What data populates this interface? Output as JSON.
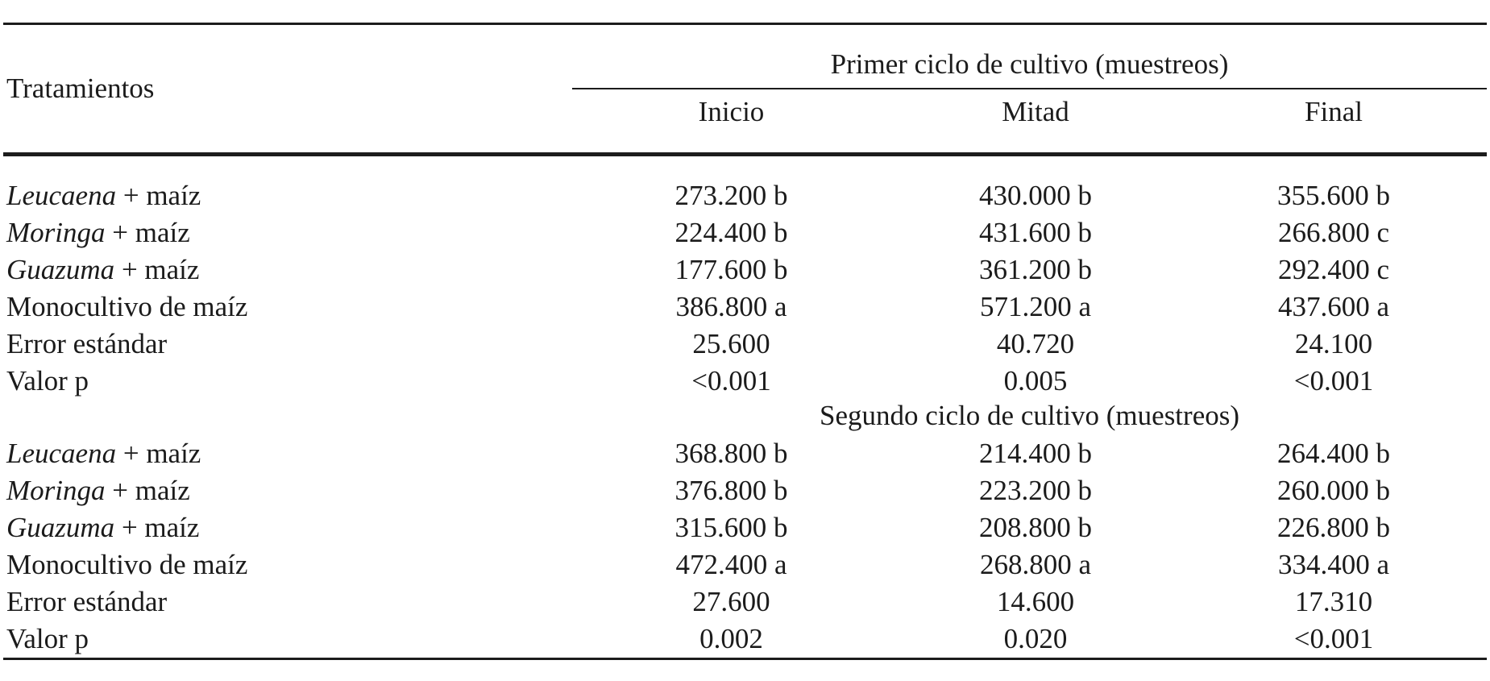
{
  "table": {
    "header": {
      "treatments": "Tratamientos",
      "cols": [
        "Inicio",
        "Mitad",
        "Final"
      ]
    },
    "sections": [
      {
        "title": "Primer ciclo de cultivo (muestreos)",
        "rows": [
          {
            "sp": "Leucaena",
            "rest": " + maíz",
            "v1": "273.200 b",
            "v2": "430.000 b",
            "v3": "355.600 b"
          },
          {
            "sp": "Moringa",
            "rest": " + maíz",
            "v1": "224.400 b",
            "v2": "431.600 b",
            "v3": "266.800 c"
          },
          {
            "sp": "Guazuma",
            "rest": " + maíz",
            "v1": "177.600 b",
            "v2": "361.200 b",
            "v3": "292.400 c"
          },
          {
            "sp": "",
            "rest": "Monocultivo de maíz",
            "v1": "386.800 a",
            "v2": "571.200 a",
            "v3": "437.600 a"
          },
          {
            "sp": "",
            "rest": "Error estándar",
            "v1": "25.600",
            "v2": "40.720",
            "v3": "24.100"
          },
          {
            "sp": "",
            "rest": "Valor p",
            "v1": "<0.001",
            "v2": "0.005",
            "v3": "<0.001"
          }
        ]
      },
      {
        "title": "Segundo ciclo de cultivo (muestreos)",
        "rows": [
          {
            "sp": "Leucaena",
            "rest": " + maíz",
            "v1": "368.800 b",
            "v2": "214.400 b",
            "v3": "264.400 b"
          },
          {
            "sp": "Moringa",
            "rest": " + maíz",
            "v1": "376.800 b",
            "v2": "223.200 b",
            "v3": "260.000 b"
          },
          {
            "sp": "Guazuma",
            "rest": " + maíz",
            "v1": "315.600 b",
            "v2": "208.800 b",
            "v3": "226.800 b"
          },
          {
            "sp": "",
            "rest": "Monocultivo de maíz",
            "v1": "472.400 a",
            "v2": "268.800 a",
            "v3": "334.400 a"
          },
          {
            "sp": "",
            "rest": "Error estándar",
            "v1": "27.600",
            "v2": "14.600",
            "v3": "17.310"
          },
          {
            "sp": "",
            "rest": "Valor p",
            "v1": "0.002",
            "v2": "0.020",
            "v3": "<0.001"
          }
        ]
      }
    ]
  }
}
